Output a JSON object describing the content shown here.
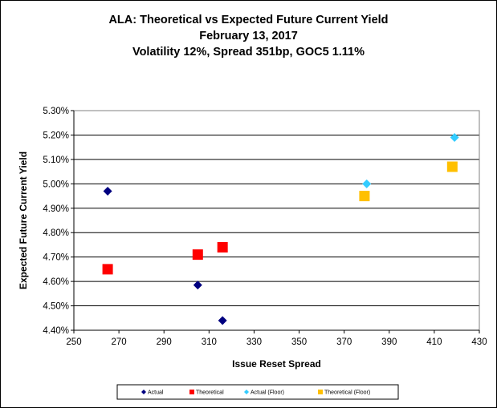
{
  "chart_data": {
    "type": "scatter",
    "title": "ALA:  Theoretical vs Expected Future Current Yield",
    "subtitle_lines": [
      "February 13, 2017",
      "Volatility 12%, Spread 351bp, GOC5 1.11%"
    ],
    "xlabel": "Issue Reset Spread",
    "ylabel": "Expected Future Current Yield",
    "xlim": [
      250,
      430
    ],
    "ylim": [
      4.4,
      5.3
    ],
    "x_ticks": [
      250,
      270,
      290,
      310,
      330,
      350,
      370,
      390,
      410,
      430
    ],
    "y_ticks": [
      4.4,
      4.5,
      4.6,
      4.7,
      4.8,
      4.9,
      5.0,
      5.1,
      5.2,
      5.3
    ],
    "y_tick_labels": [
      "4.40%",
      "4.50%",
      "4.60%",
      "4.70%",
      "4.80%",
      "4.90%",
      "5.00%",
      "5.10%",
      "5.20%",
      "5.30%"
    ],
    "grid": "horizontal",
    "legend_position": "bottom",
    "series": [
      {
        "name": "Actual",
        "marker": "diamond",
        "color": "#000080",
        "points": [
          {
            "x": 265,
            "y": 4.97
          },
          {
            "x": 305,
            "y": 4.585
          },
          {
            "x": 316,
            "y": 4.44
          }
        ]
      },
      {
        "name": "Theoretical",
        "marker": "square",
        "color": "#ff0000",
        "points": [
          {
            "x": 265,
            "y": 4.65
          },
          {
            "x": 305,
            "y": 4.71
          },
          {
            "x": 316,
            "y": 4.74
          }
        ]
      },
      {
        "name": "Actual (Floor)",
        "marker": "diamond",
        "color": "#33ccff",
        "points": [
          {
            "x": 380,
            "y": 5.0
          },
          {
            "x": 419,
            "y": 5.19
          }
        ]
      },
      {
        "name": "Theoretical (Floor)",
        "marker": "square",
        "color": "#ffc000",
        "points": [
          {
            "x": 379,
            "y": 4.95
          },
          {
            "x": 418,
            "y": 5.07
          }
        ]
      }
    ]
  }
}
